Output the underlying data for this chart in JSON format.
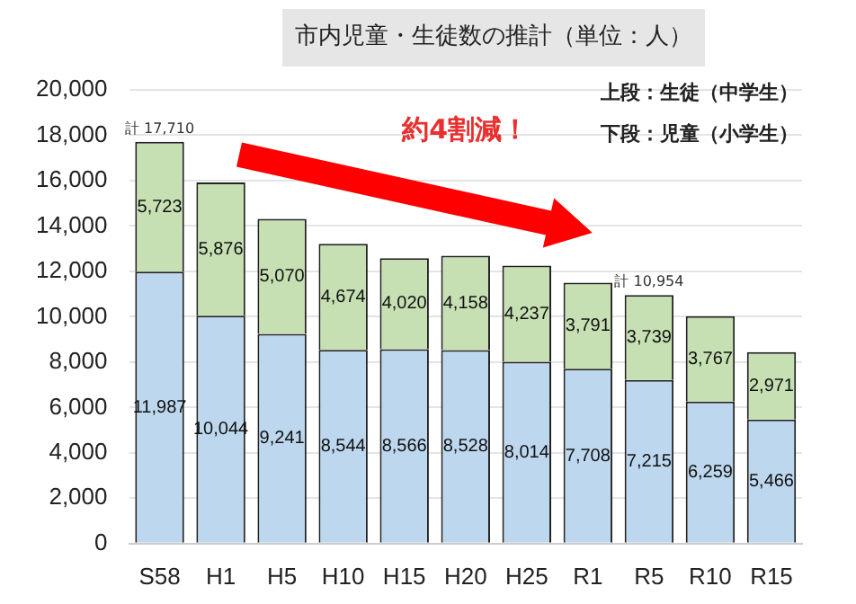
{
  "chart_data": {
    "type": "bar",
    "stacked": true,
    "title": "市内児童・生徒数の推計（単位：人）",
    "categories": [
      "S58",
      "H1",
      "H5",
      "H10",
      "H15",
      "H20",
      "H25",
      "R1",
      "R5",
      "R10",
      "R15"
    ],
    "series": [
      {
        "color": "#bdd7ee",
        "values": [
          11987,
          10044,
          9241,
          8544,
          8566,
          8528,
          8014,
          7708,
          7215,
          6259,
          5466
        ],
        "value_labels": [
          "11,987",
          "10,044",
          "9,241",
          "8,544",
          "8,566",
          "8,528",
          "8,014",
          "7,708",
          "7,215",
          "6,259",
          "5,466"
        ]
      },
      {
        "color": "#c6e0b4",
        "values": [
          5723,
          5876,
          5070,
          4674,
          4020,
          4158,
          4237,
          3791,
          3739,
          3767,
          2971
        ],
        "value_labels": [
          "5,723",
          "5,876",
          "5,070",
          "4,674",
          "4,020",
          "4,158",
          "4,237",
          "3,791",
          "3,739",
          "3,767",
          "2,971"
        ]
      }
    ],
    "ylim": [
      0,
      20000
    ],
    "yticks": [
      {
        "value": 0,
        "label": "0"
      },
      {
        "value": 2000,
        "label": "2,000"
      },
      {
        "value": 4000,
        "label": "4,000"
      },
      {
        "value": 6000,
        "label": "6,000"
      },
      {
        "value": 8000,
        "label": "8,000"
      },
      {
        "value": 10000,
        "label": "10,000"
      },
      {
        "value": 12000,
        "label": "12,000"
      },
      {
        "value": 14000,
        "label": "14,000"
      },
      {
        "value": 16000,
        "label": "16,000"
      },
      {
        "value": 18000,
        "label": "18,000"
      },
      {
        "value": 20000,
        "label": "20,000"
      }
    ],
    "grid": "y",
    "legend": false,
    "annotations": [
      "上段：生徒（中学生）",
      "下段：児童（小学生）",
      "約4割減！",
      {
        "text": "計 17,710",
        "x": "S58",
        "y": 17710
      },
      {
        "text": "計 10,954",
        "x": "R5",
        "y": 10954
      }
    ]
  }
}
